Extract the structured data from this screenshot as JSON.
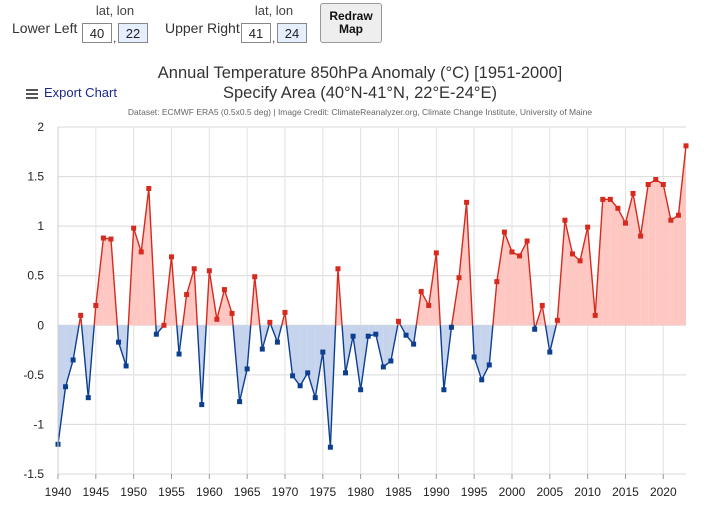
{
  "controls": {
    "lower_left_label": "Lower Left",
    "upper_right_label": "Upper Right",
    "latlon_header": "lat, lon",
    "lower_left_lat": "40",
    "lower_left_lon": "22",
    "upper_right_lat": "41",
    "upper_right_lon": "24",
    "comma": ",",
    "redraw_line1": "Redraw",
    "redraw_line2": "Map"
  },
  "export_label": "Export Chart",
  "chart_data": {
    "type": "area",
    "title": "Annual Temperature 850hPa Anomaly (°C) [1951-2000]",
    "subtitle": "Specify Area (40°N-41°N, 22°E-24°E)",
    "caption": "Dataset: ECMWF ERA5 (0.5x0.5 deg) | Image Credit: ClimateReanalyzer.org, Climate Change Institute, University of Maine",
    "xlim": [
      1940,
      2023
    ],
    "ylim": [
      -1.5,
      2
    ],
    "xticks": [
      1940,
      1945,
      1950,
      1955,
      1960,
      1965,
      1970,
      1975,
      1980,
      1985,
      1990,
      1995,
      2000,
      2005,
      2010,
      2015,
      2020
    ],
    "xtick_labels": [
      "1940",
      "1945",
      "1950",
      "1955",
      "1960",
      "1965",
      "1970",
      "1975",
      "1980",
      "1985",
      "1990",
      "1995",
      "2000",
      "2005",
      "2010",
      "2015",
      "2020"
    ],
    "yticks": [
      -1.5,
      -1,
      -0.5,
      0,
      0.5,
      1,
      1.5,
      2
    ],
    "ytick_labels": [
      "-1.5",
      "-1",
      "-0.5",
      "0",
      "0.5",
      "1",
      "1.5",
      "2"
    ],
    "positive_color": "#d62a1e",
    "negative_color": "#0d3f91",
    "positive_fill": "#ffc7c2",
    "negative_fill": "#c6d3ec",
    "x": [
      1940,
      1941,
      1942,
      1943,
      1944,
      1945,
      1946,
      1947,
      1948,
      1949,
      1950,
      1951,
      1952,
      1953,
      1954,
      1955,
      1956,
      1957,
      1958,
      1959,
      1960,
      1961,
      1962,
      1963,
      1964,
      1965,
      1966,
      1967,
      1968,
      1969,
      1970,
      1971,
      1972,
      1973,
      1974,
      1975,
      1976,
      1977,
      1978,
      1979,
      1980,
      1981,
      1982,
      1983,
      1984,
      1985,
      1986,
      1987,
      1988,
      1989,
      1990,
      1991,
      1992,
      1993,
      1994,
      1995,
      1996,
      1997,
      1998,
      1999,
      2000,
      2001,
      2002,
      2003,
      2004,
      2005,
      2006,
      2007,
      2008,
      2009,
      2010,
      2011,
      2012,
      2013,
      2014,
      2015,
      2016,
      2017,
      2018,
      2019,
      2020,
      2021,
      2022,
      2023
    ],
    "values": [
      -1.2,
      -0.62,
      -0.35,
      0.1,
      -0.73,
      0.2,
      0.88,
      0.87,
      -0.17,
      -0.41,
      0.98,
      0.74,
      1.38,
      -0.09,
      0.0,
      0.69,
      -0.29,
      0.31,
      0.57,
      -0.8,
      0.55,
      0.06,
      0.36,
      0.12,
      -0.77,
      -0.44,
      0.49,
      -0.24,
      0.03,
      -0.17,
      0.13,
      -0.51,
      -0.61,
      -0.48,
      -0.73,
      -0.27,
      -1.23,
      0.57,
      -0.48,
      -0.11,
      -0.65,
      -0.11,
      -0.09,
      -0.42,
      -0.36,
      0.04,
      -0.1,
      -0.19,
      0.34,
      0.2,
      0.73,
      -0.65,
      -0.02,
      0.48,
      1.24,
      -0.32,
      -0.55,
      -0.4,
      0.44,
      0.94,
      0.74,
      0.7,
      0.85,
      -0.04,
      0.2,
      -0.27,
      0.05,
      1.06,
      0.72,
      0.65,
      0.99,
      0.1,
      1.27,
      1.27,
      1.18,
      1.03,
      1.33,
      0.9,
      1.42,
      1.47,
      1.42,
      1.06,
      1.11,
      1.81
    ]
  }
}
